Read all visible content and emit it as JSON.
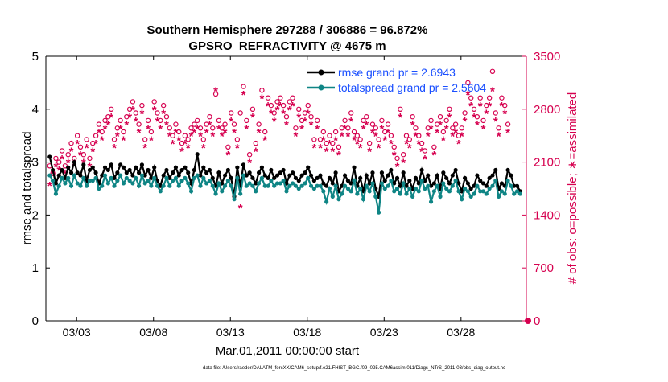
{
  "chart_data": {
    "type": "line",
    "title_line1": "Southern Hemisphere 297288 / 306886 = 96.872%",
    "title_line2": "GPSRO_REFRACTIVITY @ 4675 m",
    "xlabel": "Mar.01,2011 00:00:00 start",
    "ylabel_left": "rmse and totalspread",
    "ylabel_right": "# of obs: o=possible; ∗=assimilated",
    "footer": "data file: /Users/raeder/DAI/ATM_forcXX/CAM6_setup/f.e21.FHIST_BGC.f09_025.CAM6assim.011/Diags_NTrS_2011-03/obs_diag_output.nc",
    "x_range_days": [
      1,
      32.25
    ],
    "xticks": [
      {
        "day": 3,
        "label": "03/03"
      },
      {
        "day": 8,
        "label": "03/08"
      },
      {
        "day": 13,
        "label": "03/13"
      },
      {
        "day": 18,
        "label": "03/18"
      },
      {
        "day": 23,
        "label": "03/23"
      },
      {
        "day": 28,
        "label": "03/28"
      }
    ],
    "ylim_left": [
      0,
      5
    ],
    "yticks_left": [
      "0",
      "1",
      "2",
      "3",
      "4",
      "5"
    ],
    "ylim_right": [
      0,
      3500
    ],
    "yticks_right": [
      "0",
      "700",
      "1400",
      "2100",
      "2800",
      "3500"
    ],
    "legend": [
      {
        "label": "rmse grand pr = 2.6943"
      },
      {
        "label": "totalspread grand pr = 2.5604"
      }
    ],
    "colors": {
      "rmse": "#000000",
      "totalspread": "#0f8585",
      "obs": "#d6004f",
      "legend_text": "#1a4fff"
    },
    "series": [
      {
        "name": "rmse",
        "values": [
          3.1,
          2.85,
          2.6,
          2.75,
          2.85,
          2.7,
          2.9,
          2.8,
          3.0,
          2.8,
          2.75,
          2.95,
          2.65,
          2.85,
          2.9,
          2.8,
          2.6,
          2.75,
          2.9,
          2.85,
          2.95,
          2.7,
          2.8,
          2.95,
          2.9,
          2.8,
          2.85,
          2.75,
          2.9,
          2.8,
          2.95,
          2.75,
          2.85,
          2.7,
          2.9,
          2.65,
          2.55,
          2.75,
          2.85,
          2.7,
          2.8,
          2.9,
          2.75,
          2.85,
          2.9,
          2.8,
          2.6,
          2.85,
          3.15,
          2.75,
          2.9,
          2.8,
          2.85,
          2.7,
          2.55,
          2.8,
          2.6,
          2.75,
          2.85,
          2.7,
          2.35,
          2.9,
          2.55,
          2.95,
          2.75,
          2.8,
          2.7,
          2.6,
          2.8,
          2.9,
          2.75,
          2.7,
          2.85,
          2.7,
          2.75,
          2.8,
          2.85,
          2.6,
          2.75,
          2.8,
          2.7,
          2.65,
          2.75,
          2.8,
          2.9,
          2.75,
          2.65,
          2.7,
          2.75,
          2.6,
          2.55,
          2.7,
          2.6,
          2.8,
          2.45,
          2.55,
          2.75,
          2.65,
          2.6,
          2.9,
          2.55,
          2.7,
          2.45,
          2.75,
          2.6,
          2.8,
          2.5,
          2.35,
          2.8,
          2.65,
          2.75,
          2.85,
          2.6,
          2.7,
          2.55,
          2.8,
          2.55,
          2.65,
          2.5,
          2.7,
          2.6,
          2.85,
          2.65,
          2.75,
          2.55,
          2.6,
          2.75,
          2.5,
          2.8,
          2.7,
          2.6,
          2.75,
          2.85,
          2.6,
          2.45,
          2.7,
          2.6,
          2.5,
          2.55,
          2.75,
          2.65,
          2.6,
          2.55,
          2.7,
          2.75,
          2.85,
          2.5,
          2.6,
          2.55,
          2.85,
          2.75,
          2.55,
          2.55,
          2.45
        ]
      },
      {
        "name": "totalspread",
        "values": [
          2.75,
          2.65,
          2.4,
          2.55,
          2.7,
          2.6,
          2.7,
          2.55,
          2.75,
          2.6,
          2.55,
          2.7,
          2.55,
          2.65,
          2.65,
          2.7,
          2.5,
          2.55,
          2.75,
          2.6,
          2.7,
          2.55,
          2.65,
          2.75,
          2.6,
          2.7,
          2.65,
          2.6,
          2.7,
          2.55,
          2.75,
          2.6,
          2.65,
          2.55,
          2.7,
          2.55,
          2.45,
          2.55,
          2.7,
          2.55,
          2.65,
          2.7,
          2.55,
          2.65,
          2.7,
          2.6,
          2.45,
          2.7,
          2.75,
          2.55,
          2.7,
          2.6,
          2.65,
          2.55,
          2.4,
          2.6,
          2.45,
          2.55,
          2.65,
          2.55,
          2.3,
          2.7,
          2.4,
          2.75,
          2.55,
          2.6,
          2.55,
          2.45,
          2.6,
          2.7,
          2.55,
          2.55,
          2.65,
          2.55,
          2.6,
          2.6,
          2.65,
          2.45,
          2.55,
          2.6,
          2.55,
          2.5,
          2.55,
          2.6,
          2.7,
          2.55,
          2.5,
          2.55,
          2.55,
          2.45,
          2.25,
          2.5,
          2.35,
          2.55,
          2.3,
          2.4,
          2.55,
          2.5,
          2.45,
          2.65,
          2.4,
          2.5,
          2.3,
          2.55,
          2.45,
          2.6,
          2.35,
          2.05,
          2.6,
          2.5,
          2.55,
          2.65,
          2.45,
          2.5,
          2.4,
          2.6,
          2.4,
          2.5,
          2.35,
          2.5,
          2.45,
          2.65,
          2.5,
          2.55,
          2.25,
          2.45,
          2.55,
          2.35,
          2.6,
          2.5,
          2.45,
          2.55,
          2.65,
          2.45,
          2.3,
          2.5,
          2.45,
          2.35,
          2.4,
          2.55,
          2.45,
          2.45,
          2.4,
          2.5,
          2.55,
          2.65,
          2.35,
          2.45,
          2.4,
          2.65,
          2.55,
          2.4,
          2.45,
          2.4
        ]
      },
      {
        "name": "obs_possible",
        "values": [
          2050,
          1950,
          2150,
          2100,
          2250,
          2050,
          2200,
          2350,
          2150,
          2450,
          2300,
          2200,
          2400,
          2150,
          2350,
          2450,
          2600,
          2500,
          2650,
          2700,
          2800,
          2400,
          2550,
          2650,
          2500,
          2700,
          2800,
          2900,
          2750,
          2600,
          2850,
          2400,
          2650,
          2500,
          2900,
          2750,
          2650,
          2850,
          2700,
          2550,
          2450,
          2600,
          2500,
          2350,
          2450,
          2400,
          2550,
          2600,
          2650,
          2550,
          2400,
          2600,
          2700,
          2550,
          3000,
          2650,
          2550,
          2600,
          2300,
          2750,
          2600,
          2400,
          2750,
          3100,
          2650,
          2200,
          2800,
          2350,
          2600,
          3050,
          2500,
          2950,
          2850,
          2750,
          2900,
          2950,
          2850,
          2700,
          2900,
          2950,
          2550,
          2800,
          2650,
          2750,
          2850,
          2700,
          2400,
          2650,
          2400,
          2500,
          2350,
          2450,
          2350,
          2500,
          2300,
          2550,
          2650,
          2550,
          2750,
          2500,
          2450,
          2400,
          2650,
          2700,
          2350,
          2600,
          2550,
          2400,
          2650,
          2500,
          2600,
          2450,
          2300,
          2150,
          2800,
          2200,
          2450,
          2400,
          2700,
          2550,
          2450,
          2350,
          2250,
          2550,
          2650,
          2300,
          2600,
          2700,
          2500,
          2650,
          2800,
          2550,
          2600,
          2450,
          2550,
          2750,
          3150,
          2950,
          2800,
          2700,
          2950,
          2650,
          2850,
          2950,
          3300,
          2750,
          2550,
          2950,
          2850,
          2600
        ]
      },
      {
        "name": "obs_assimilated",
        "values": [
          1800,
          1950,
          2050,
          2000,
          2150,
          1950,
          2100,
          2250,
          2050,
          2350,
          2200,
          2100,
          2300,
          2050,
          2250,
          2350,
          2500,
          2400,
          2550,
          2600,
          2700,
          2300,
          2450,
          2550,
          2400,
          2600,
          2700,
          2800,
          2650,
          2500,
          2750,
          2300,
          2550,
          2400,
          2800,
          2650,
          2550,
          2750,
          2600,
          2450,
          2350,
          2500,
          2400,
          2250,
          2350,
          2300,
          2450,
          2500,
          2550,
          2450,
          2300,
          2500,
          2600,
          2450,
          3050,
          2550,
          2450,
          2500,
          2200,
          2650,
          2500,
          2300,
          1500,
          3000,
          2550,
          2100,
          2700,
          2250,
          2500,
          2950,
          2400,
          2850,
          2750,
          2650,
          2800,
          2850,
          2750,
          2600,
          2800,
          2850,
          2450,
          2700,
          2550,
          2650,
          2750,
          2600,
          2300,
          2550,
          2300,
          2400,
          2250,
          2350,
          2250,
          2400,
          2200,
          2450,
          2550,
          2450,
          2650,
          2400,
          2350,
          2300,
          2550,
          2600,
          2250,
          2500,
          2450,
          2300,
          2550,
          2400,
          2500,
          2350,
          2200,
          2050,
          2700,
          2100,
          2350,
          2300,
          2600,
          2450,
          2350,
          2250,
          2150,
          2450,
          2550,
          2200,
          2500,
          2600,
          2400,
          2550,
          2700,
          2450,
          2500,
          2350,
          2450,
          2650,
          3000,
          2850,
          2700,
          2600,
          2850,
          2550,
          2750,
          2850,
          3050,
          2650,
          2450,
          2850,
          2750,
          2500
        ]
      }
    ]
  }
}
